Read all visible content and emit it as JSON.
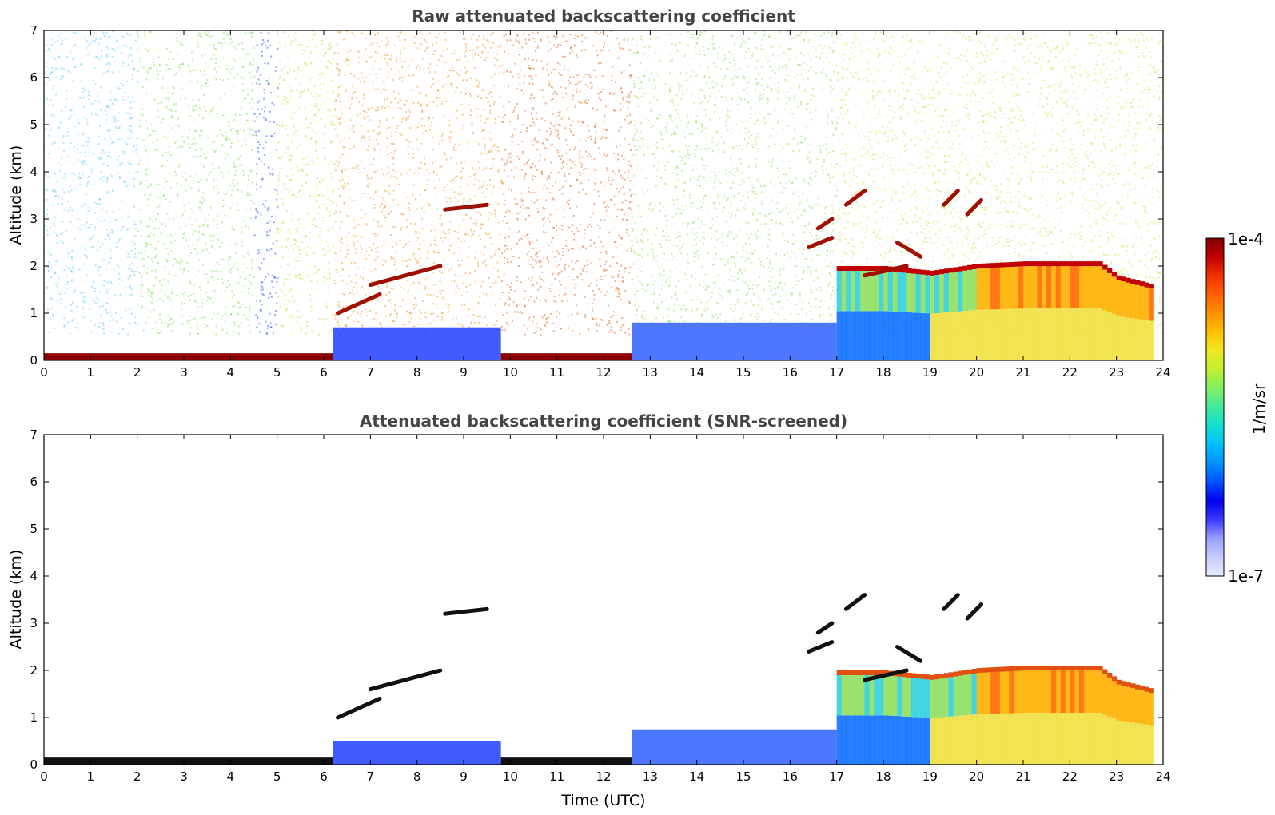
{
  "chart_data": [
    {
      "type": "heatmap",
      "title": "Raw attenuated backscattering coefficient",
      "xlabel": "",
      "ylabel": "Altitude (km)",
      "xlim": [
        0,
        24
      ],
      "ylim": [
        0,
        7
      ],
      "x_ticks": [
        "0",
        "1",
        "2",
        "3",
        "4",
        "5",
        "6",
        "7",
        "8",
        "9",
        "10",
        "11",
        "12",
        "13",
        "14",
        "15",
        "16",
        "17",
        "18",
        "19",
        "20",
        "21",
        "22",
        "23",
        "24"
      ],
      "y_ticks": [
        "0",
        "1",
        "2",
        "3",
        "4",
        "5",
        "6",
        "7"
      ],
      "screened": false,
      "surface_layer": [
        {
          "start": 0,
          "end": 6.2,
          "top": 0.15,
          "color": "#8b0000"
        },
        {
          "start": 9.8,
          "end": 12.6,
          "top": 0.15,
          "color": "#8b0000"
        }
      ],
      "boundary_layer": [
        {
          "start": 6.2,
          "end": 9.8,
          "top": 0.7,
          "color": "#1f3fff"
        },
        {
          "start": 12.6,
          "end": 17.0,
          "top": 0.8,
          "color": "#2f5fff"
        }
      ],
      "dense_region": {
        "start": 17.0,
        "end": 23.8,
        "top": [
          [
            17,
            1.9
          ],
          [
            18,
            1.9
          ],
          [
            19,
            1.8
          ],
          [
            20,
            1.95
          ],
          [
            21,
            2.0
          ],
          [
            21.6,
            2.0
          ],
          [
            22,
            2.0
          ],
          [
            22.6,
            2.0
          ],
          [
            23,
            1.7
          ],
          [
            23.8,
            1.5
          ]
        ]
      },
      "noise_regions": [
        {
          "start": 0,
          "end": 2.0,
          "color": "#6fd0ff"
        },
        {
          "start": 2.0,
          "end": 4.5,
          "color": "#8ee06a"
        },
        {
          "start": 4.5,
          "end": 5.0,
          "color": "#3060ff"
        },
        {
          "start": 5.0,
          "end": 6.2,
          "color": "#c8e04a"
        },
        {
          "start": 6.2,
          "end": 9.8,
          "color": "#f0a040"
        },
        {
          "start": 9.8,
          "end": 12.6,
          "color": "#e87030"
        },
        {
          "start": 12.6,
          "end": 17.0,
          "color": "#9ee070"
        },
        {
          "start": 17.0,
          "end": 24.0,
          "color": "#e0e060"
        }
      ],
      "cloud_segments": [
        {
          "x0": 6.3,
          "y0": 1.0,
          "x1": 7.2,
          "y1": 1.4
        },
        {
          "x0": 7.0,
          "y0": 1.6,
          "x1": 8.5,
          "y1": 2.0
        },
        {
          "x0": 8.6,
          "y0": 3.2,
          "x1": 9.5,
          "y1": 3.3
        },
        {
          "x0": 16.4,
          "y0": 2.4,
          "x1": 16.9,
          "y1": 2.6
        },
        {
          "x0": 16.6,
          "y0": 2.8,
          "x1": 16.9,
          "y1": 3.0
        },
        {
          "x0": 17.2,
          "y0": 3.3,
          "x1": 17.6,
          "y1": 3.6
        },
        {
          "x0": 17.6,
          "y0": 1.8,
          "x1": 18.5,
          "y1": 2.0
        },
        {
          "x0": 18.3,
          "y0": 2.5,
          "x1": 18.8,
          "y1": 2.2
        },
        {
          "x0": 19.3,
          "y0": 3.3,
          "x1": 19.6,
          "y1": 3.6
        },
        {
          "x0": 19.8,
          "y0": 3.1,
          "x1": 20.1,
          "y1": 3.4
        }
      ]
    },
    {
      "type": "heatmap",
      "title": "Attenuated backscattering coefficient (SNR-screened)",
      "xlabel": "Time (UTC)",
      "ylabel": "Altitude (km)",
      "xlim": [
        0,
        24
      ],
      "ylim": [
        0,
        7
      ],
      "x_ticks": [
        "0",
        "1",
        "2",
        "3",
        "4",
        "5",
        "6",
        "7",
        "8",
        "9",
        "10",
        "11",
        "12",
        "13",
        "14",
        "15",
        "16",
        "17",
        "18",
        "19",
        "20",
        "21",
        "22",
        "23",
        "24"
      ],
      "y_ticks": [
        "0",
        "1",
        "2",
        "3",
        "4",
        "5",
        "6",
        "7"
      ],
      "screened": true,
      "surface_layer": [
        {
          "start": 0,
          "end": 6.2,
          "top": 0.15,
          "color": "#111111"
        },
        {
          "start": 9.8,
          "end": 12.6,
          "top": 0.15,
          "color": "#111111"
        }
      ],
      "boundary_layer": [
        {
          "start": 6.2,
          "end": 9.8,
          "top": 0.5,
          "color": "#1f3fff"
        },
        {
          "start": 12.6,
          "end": 17.0,
          "top": 0.75,
          "color": "#2f5fff"
        }
      ],
      "dense_region": {
        "start": 17.0,
        "end": 23.8,
        "top": [
          [
            17,
            1.9
          ],
          [
            18,
            1.9
          ],
          [
            19,
            1.8
          ],
          [
            20,
            1.95
          ],
          [
            21,
            2.0
          ],
          [
            21.6,
            2.0
          ],
          [
            22,
            2.0
          ],
          [
            22.6,
            2.0
          ],
          [
            23,
            1.7
          ],
          [
            23.8,
            1.5
          ]
        ]
      },
      "noise_regions": [],
      "cloud_segments": [
        {
          "x0": 6.3,
          "y0": 1.0,
          "x1": 7.2,
          "y1": 1.4
        },
        {
          "x0": 7.0,
          "y0": 1.6,
          "x1": 8.5,
          "y1": 2.0
        },
        {
          "x0": 8.6,
          "y0": 3.2,
          "x1": 9.5,
          "y1": 3.3
        },
        {
          "x0": 16.4,
          "y0": 2.4,
          "x1": 16.9,
          "y1": 2.6
        },
        {
          "x0": 16.6,
          "y0": 2.8,
          "x1": 16.9,
          "y1": 3.0
        },
        {
          "x0": 17.2,
          "y0": 3.3,
          "x1": 17.6,
          "y1": 3.6
        },
        {
          "x0": 17.6,
          "y0": 1.8,
          "x1": 18.5,
          "y1": 2.0
        },
        {
          "x0": 18.3,
          "y0": 2.5,
          "x1": 18.8,
          "y1": 2.2
        },
        {
          "x0": 19.3,
          "y0": 3.3,
          "x1": 19.6,
          "y1": 3.6
        },
        {
          "x0": 19.8,
          "y0": 3.1,
          "x1": 20.1,
          "y1": 3.4
        }
      ]
    }
  ],
  "colorbar": {
    "label": "1/m/sr",
    "max_label": "1e-4",
    "min_label": "1e-7",
    "scale": "log",
    "colors": [
      "#e8eaff",
      "#c8ccff",
      "#9aa0ff",
      "#3a3aff",
      "#0000ee",
      "#0050ff",
      "#0090ff",
      "#00c0ff",
      "#10e0d0",
      "#40e8a0",
      "#80f060",
      "#c0f030",
      "#f0e820",
      "#ffc000",
      "#ff9000",
      "#ff6000",
      "#f03000",
      "#c00000",
      "#800000"
    ]
  }
}
